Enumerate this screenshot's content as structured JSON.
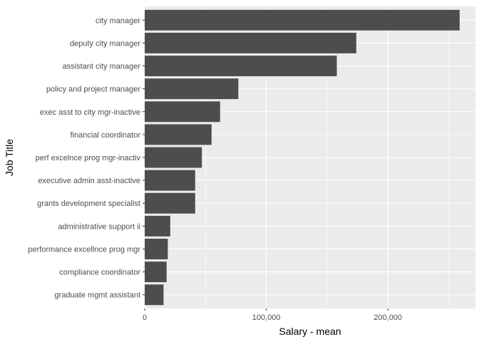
{
  "chart_data": {
    "type": "bar",
    "orientation": "horizontal",
    "title": "",
    "xlabel": "Salary - mean",
    "ylabel": "Job Title",
    "categories": [
      "city manager",
      "deputy city manager",
      "assistant city manager",
      "policy and project manager",
      "exec asst to city mgr-inactive",
      "financial coordinator",
      "perf excelnce prog mgr-inactiv",
      "executive admin asst-inactive",
      "grants development specialist",
      "administrative support ii",
      "performance excellnce prog mgr",
      "compliance coordinator",
      "graduate mgmt assistant"
    ],
    "values": [
      259000,
      174000,
      158000,
      77000,
      62000,
      55000,
      47000,
      41500,
      41500,
      21000,
      19000,
      18000,
      15500
    ],
    "xlim": [
      0,
      272000
    ],
    "xticks": [
      0,
      100000,
      200000
    ],
    "xtick_labels": [
      "0",
      "100,000",
      "200,000"
    ],
    "grid": true,
    "colors": {
      "bar": "#4d4d4d",
      "panel": "#ebebeb",
      "grid_major": "#ffffff",
      "tick_text": "#4d4d4d",
      "tick_mark": "#333333"
    }
  }
}
